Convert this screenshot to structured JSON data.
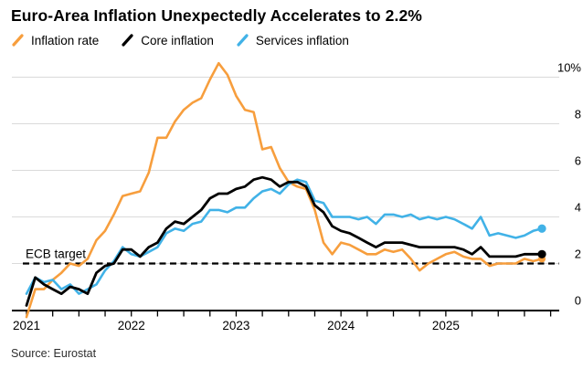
{
  "title": "Euro-Area Inflation Unexpectedly Accelerates to 2.2%",
  "source": "Source: Eurostat",
  "legend": {
    "items": [
      {
        "label": "Inflation rate",
        "color": "#F79E3D"
      },
      {
        "label": "Core inflation",
        "color": "#000000"
      },
      {
        "label": "Services inflation",
        "color": "#41B2E7"
      }
    ]
  },
  "chart_data": {
    "type": "line",
    "frequency": "monthly",
    "title": "Euro-Area Inflation Unexpectedly Accelerates to 2.2%",
    "xlabel": "",
    "ylabel": "",
    "ylim": [
      0,
      10
    ],
    "grid": "horizontal",
    "legend_position": "top",
    "months": [
      "2020-12",
      "2021-01",
      "2021-02",
      "2021-03",
      "2021-04",
      "2021-05",
      "2021-06",
      "2021-07",
      "2021-08",
      "2021-09",
      "2021-10",
      "2021-11",
      "2021-12",
      "2022-01",
      "2022-02",
      "2022-03",
      "2022-04",
      "2022-05",
      "2022-06",
      "2022-07",
      "2022-08",
      "2022-09",
      "2022-10",
      "2022-11",
      "2022-12",
      "2023-01",
      "2023-02",
      "2023-03",
      "2023-04",
      "2023-05",
      "2023-06",
      "2023-07",
      "2023-08",
      "2023-09",
      "2023-10",
      "2023-11",
      "2023-12",
      "2024-01",
      "2024-02",
      "2024-03",
      "2024-04",
      "2024-05",
      "2024-06",
      "2024-07",
      "2024-08",
      "2024-09",
      "2024-10",
      "2024-11",
      "2024-12",
      "2025-01",
      "2025-02",
      "2025-03",
      "2025-04",
      "2025-05",
      "2025-06",
      "2025-07",
      "2025-08",
      "2025-09",
      "2025-10",
      "2025-11"
    ],
    "series": [
      {
        "name": "Inflation rate",
        "color": "#F79E3D",
        "line_width": 2.6,
        "end_dot": true,
        "values": [
          -0.3,
          0.9,
          0.9,
          1.3,
          1.6,
          2.0,
          1.9,
          2.2,
          3.0,
          3.4,
          4.1,
          4.9,
          5.0,
          5.1,
          5.9,
          7.4,
          7.4,
          8.1,
          8.6,
          8.9,
          9.1,
          9.9,
          10.6,
          10.1,
          9.2,
          8.6,
          8.5,
          6.9,
          7.0,
          6.1,
          5.5,
          5.3,
          5.2,
          4.3,
          2.9,
          2.4,
          2.9,
          2.8,
          2.6,
          2.4,
          2.4,
          2.6,
          2.5,
          2.6,
          2.2,
          1.7,
          2.0,
          2.2,
          2.4,
          2.5,
          2.3,
          2.2,
          2.2,
          1.9,
          2.0,
          2.0,
          2.0,
          2.2,
          2.1,
          2.2
        ]
      },
      {
        "name": "Core inflation",
        "color": "#000000",
        "line_width": 2.8,
        "end_dot": true,
        "values": [
          0.2,
          1.4,
          1.1,
          0.9,
          0.7,
          1.0,
          0.9,
          0.7,
          1.6,
          1.9,
          2.0,
          2.6,
          2.6,
          2.3,
          2.7,
          2.9,
          3.5,
          3.8,
          3.7,
          4.0,
          4.3,
          4.8,
          5.0,
          5.0,
          5.2,
          5.3,
          5.6,
          5.7,
          5.6,
          5.3,
          5.5,
          5.5,
          5.3,
          4.5,
          4.2,
          3.6,
          3.4,
          3.3,
          3.1,
          2.9,
          2.7,
          2.9,
          2.9,
          2.9,
          2.8,
          2.7,
          2.7,
          2.7,
          2.7,
          2.7,
          2.6,
          2.4,
          2.7,
          2.3,
          2.3,
          2.3,
          2.3,
          2.4,
          2.4,
          2.4
        ]
      },
      {
        "name": "Services inflation",
        "color": "#41B2E7",
        "line_width": 2.6,
        "end_dot": true,
        "values": [
          0.7,
          1.4,
          1.2,
          1.3,
          0.9,
          1.1,
          0.7,
          0.9,
          1.1,
          1.7,
          2.1,
          2.7,
          2.4,
          2.3,
          2.5,
          2.7,
          3.3,
          3.5,
          3.4,
          3.7,
          3.8,
          4.3,
          4.3,
          4.2,
          4.4,
          4.4,
          4.8,
          5.1,
          5.2,
          5.0,
          5.4,
          5.6,
          5.5,
          4.7,
          4.6,
          4.0,
          4.0,
          4.0,
          3.9,
          4.0,
          3.7,
          4.1,
          4.1,
          4.0,
          4.1,
          3.9,
          4.0,
          3.9,
          4.0,
          3.9,
          3.7,
          3.5,
          4.0,
          3.2,
          3.3,
          3.2,
          3.1,
          3.2,
          3.4,
          3.5
        ]
      }
    ],
    "y_ticks": [
      {
        "value": 10,
        "label": "10%"
      },
      {
        "value": 8,
        "label": "8"
      },
      {
        "value": 6,
        "label": "6"
      },
      {
        "value": 4,
        "label": "4"
      },
      {
        "value": 2,
        "label": "2"
      },
      {
        "value": 0,
        "label": "0"
      }
    ],
    "x_year_ticks": [
      {
        "year": 2021,
        "label": "2021"
      },
      {
        "year": 2022,
        "label": "2022"
      },
      {
        "year": 2023,
        "label": "2023"
      },
      {
        "year": 2024,
        "label": "2024"
      },
      {
        "year": 2025,
        "label": "2025"
      }
    ],
    "annotations": {
      "ecb_target": {
        "label": "ECB target",
        "value": 2
      }
    }
  }
}
